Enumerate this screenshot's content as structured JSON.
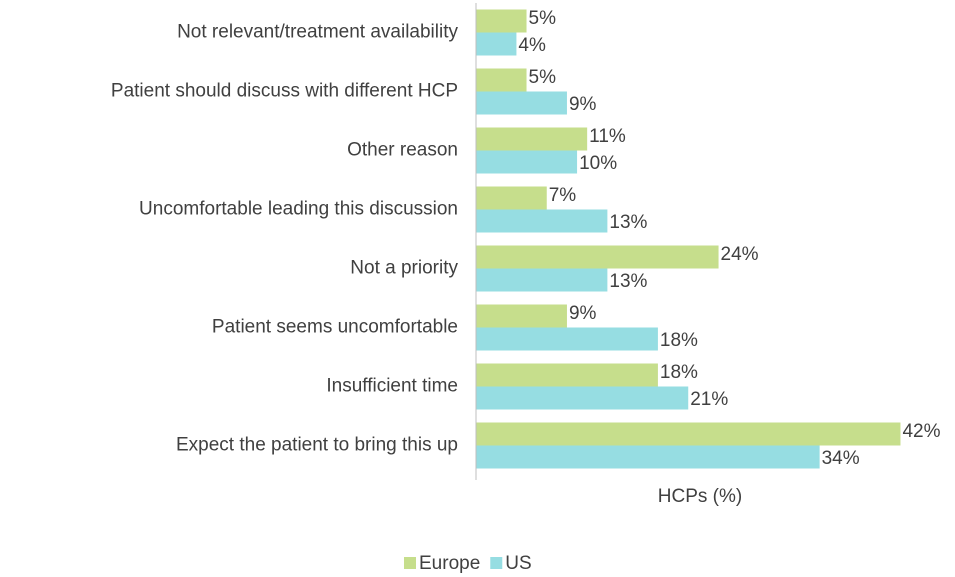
{
  "chart_data": {
    "type": "hbar",
    "categories": [
      "Not relevant/treatment availability",
      "Patient should discuss with different HCP",
      "Other reason",
      "Uncomfortable leading this discussion",
      "Not a priority",
      "Patient seems uncomfortable",
      "Insufficient time",
      "Expect the patient to bring this up"
    ],
    "series": [
      {
        "name": "Europe",
        "color": "#c6de8c",
        "values": [
          5,
          5,
          11,
          7,
          24,
          9,
          18,
          42
        ],
        "value_labels": [
          "5%",
          "5%",
          "11%",
          "7%",
          "24%",
          "9%",
          "18%",
          "42%"
        ]
      },
      {
        "name": "US",
        "color": "#96dde2",
        "values": [
          4,
          9,
          10,
          13,
          13,
          18,
          21,
          34
        ],
        "value_labels": [
          "4%",
          "9%",
          "10%",
          "13%",
          "13%",
          "18%",
          "21%",
          "34%"
        ]
      }
    ],
    "xlabel": "HCPs (%)",
    "xlim": [
      0,
      47
    ],
    "legend": "bottom"
  }
}
